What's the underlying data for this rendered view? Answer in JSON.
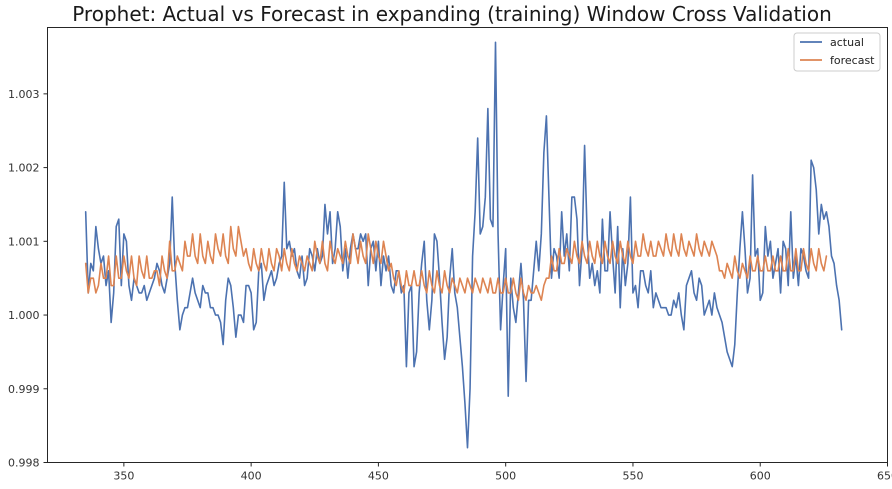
{
  "chart_data": {
    "type": "line",
    "title": "Prophet: Actual vs Forecast in expanding (training) Window Cross Validation",
    "xlabel": "",
    "ylabel": "",
    "xlim": [
      320,
      650
    ],
    "ylim": [
      0.998,
      1.0039
    ],
    "x_ticks": [
      350,
      400,
      450,
      500,
      550,
      600,
      650
    ],
    "y_ticks": [
      0.998,
      0.999,
      1.0,
      1.001,
      1.002,
      1.003
    ],
    "x_tick_labels": [
      "350",
      "400",
      "450",
      "500",
      "550",
      "600",
      "650"
    ],
    "y_tick_labels": [
      "0.998",
      "0.999",
      "1.000",
      "1.001",
      "1.002",
      "1.003"
    ],
    "grid": false,
    "legend_position": "top-right",
    "x_start": 335,
    "series": [
      {
        "name": "actual",
        "color": "#4c72b0",
        "values": [
          1.0014,
          1.0003,
          1.0007,
          1.0006,
          1.0012,
          1.0009,
          1.0007,
          1.0008,
          1.0004,
          1.0006,
          0.9999,
          1.0003,
          1.0012,
          1.0013,
          1.0004,
          1.0011,
          1.001,
          1.0004,
          1.0002,
          1.0005,
          1.0004,
          1.0003,
          1.0003,
          1.0004,
          1.0002,
          1.0003,
          1.0004,
          1.0005,
          1.0007,
          1.0006,
          1.0004,
          1.0003,
          1.0005,
          1.0007,
          1.0016,
          1.0007,
          1.0002,
          0.9998,
          1.0,
          1.0001,
          1.0001,
          1.0003,
          1.0005,
          1.0003,
          1.0002,
          1.0001,
          1.0004,
          1.0003,
          1.0003,
          1.0001,
          1.0001,
          1.0,
          1.0,
          0.9999,
          0.9996,
          1.0002,
          1.0005,
          1.0004,
          1.0001,
          0.9997,
          1.0,
          1.0,
          0.9999,
          1.0004,
          1.0004,
          1.0003,
          0.9998,
          0.9999,
          1.0006,
          1.0007,
          1.0002,
          1.0004,
          1.0005,
          1.0006,
          1.0004,
          1.0005,
          1.0007,
          1.0008,
          1.0018,
          1.0009,
          1.001,
          1.0008,
          1.0009,
          1.0006,
          1.0005,
          1.0008,
          1.0004,
          1.0005,
          1.0009,
          1.0008,
          1.0006,
          1.0009,
          1.0007,
          1.0008,
          1.0015,
          1.0011,
          1.0014,
          1.0007,
          1.0009,
          1.0014,
          1.0012,
          1.0006,
          1.0009,
          1.0005,
          1.0009,
          1.0011,
          1.0009,
          1.0009,
          1.0011,
          1.001,
          1.0011,
          1.0004,
          1.0009,
          1.001,
          1.0006,
          1.001,
          1.0004,
          1.0008,
          1.0006,
          1.0008,
          1.0004,
          1.0003,
          1.0006,
          1.0006,
          1.0003,
          1.0004,
          0.9993,
          1.0003,
          1.0004,
          0.9993,
          0.9995,
          1.0003,
          1.0007,
          1.001,
          1.0002,
          0.9998,
          1.0002,
          1.0011,
          1.001,
          1.0005,
          0.9999,
          0.9994,
          0.9997,
          1.0005,
          1.0009,
          1.0003,
          1.0001,
          0.9997,
          0.9993,
          0.9988,
          0.9982,
          0.999,
          1.0008,
          1.0014,
          1.0024,
          1.0011,
          1.0012,
          1.0016,
          1.0028,
          1.0013,
          1.0012,
          1.0037,
          1.0011,
          0.9998,
          1.0004,
          1.0009,
          0.9989,
          1.0005,
          1.0001,
          0.9999,
          1.0003,
          1.0007,
          1.0002,
          0.9991,
          1.0002,
          1.0002,
          1.0006,
          1.001,
          1.0006,
          1.0011,
          1.0022,
          1.0027,
          1.0016,
          1.0005,
          1.0009,
          1.0008,
          1.0005,
          1.0014,
          1.0008,
          1.0011,
          1.0006,
          1.0016,
          1.0016,
          1.0013,
          1.0004,
          1.0009,
          1.0023,
          1.0011,
          1.0005,
          1.0007,
          1.0004,
          1.0006,
          1.0003,
          1.0013,
          1.0006,
          1.0006,
          1.0014,
          1.0008,
          1.0003,
          1.0012,
          1.0001,
          1.0009,
          1.0004,
          1.0007,
          1.0016,
          1.0003,
          1.0004,
          1.0001,
          1.0006,
          1.0006,
          1.0004,
          1.0003,
          1.0006,
          1.0001,
          1.0003,
          1.0002,
          1.0001,
          1.0001,
          1.0001,
          1.0,
          1.0,
          1.0002,
          1.0001,
          1.0003,
          1.0,
          0.9998,
          1.0004,
          1.0005,
          1.0006,
          1.0003,
          1.0002,
          1.0005,
          1.0004,
          1.0,
          1.0001,
          1.0002,
          1.0,
          1.0003,
          1.0001,
          1.0,
          0.9999,
          0.9997,
          0.9995,
          0.9994,
          0.9993,
          0.9996,
          1.0003,
          1.0009,
          1.0014,
          1.0009,
          1.0003,
          1.0005,
          1.0019,
          1.0008,
          1.0009,
          1.0002,
          1.0003,
          1.0012,
          1.0008,
          1.001,
          1.0005,
          1.0007,
          1.0009,
          1.0003,
          1.001,
          1.0009,
          1.0004,
          1.0014,
          1.0005,
          1.0008,
          1.0004,
          1.0009,
          1.0008,
          1.0006,
          1.0005,
          1.0021,
          1.002,
          1.0017,
          1.0011,
          1.0015,
          1.0013,
          1.0014,
          1.0012,
          1.0008,
          1.0007,
          1.0004,
          1.0002,
          0.9998
        ]
      },
      {
        "name": "forecast",
        "color": "#dd8452",
        "values": [
          1.0007,
          1.0003,
          1.0005,
          1.0005,
          1.0003,
          1.0004,
          1.0007,
          1.0005,
          1.0005,
          1.0008,
          1.0004,
          1.0004,
          1.0008,
          1.0005,
          1.0005,
          1.0008,
          1.0006,
          1.0005,
          1.0008,
          1.0005,
          1.0004,
          1.0008,
          1.0006,
          1.0005,
          1.0008,
          1.0005,
          1.0005,
          1.0006,
          1.0006,
          1.0004,
          1.0008,
          1.0006,
          1.0005,
          1.001,
          1.0006,
          1.0006,
          1.0008,
          1.0007,
          1.0006,
          1.001,
          1.0008,
          1.0008,
          1.0011,
          1.0008,
          1.0007,
          1.0011,
          1.0008,
          1.0007,
          1.001,
          1.0008,
          1.0007,
          1.0011,
          1.0009,
          1.0008,
          1.0011,
          1.0008,
          1.0007,
          1.0012,
          1.0009,
          1.0008,
          1.0012,
          1.001,
          1.0008,
          1.0009,
          1.0007,
          1.0006,
          1.0009,
          1.0007,
          1.0006,
          1.0009,
          1.0007,
          1.0006,
          1.0009,
          1.0007,
          1.0006,
          1.0009,
          1.0008,
          1.0006,
          1.0009,
          1.0007,
          1.0006,
          1.0009,
          1.0007,
          1.0006,
          1.0008,
          1.0007,
          1.0006,
          1.0008,
          1.0007,
          1.0006,
          1.001,
          1.0008,
          1.0007,
          1.001,
          1.0007,
          1.0006,
          1.001,
          1.0008,
          1.0007,
          1.0009,
          1.0008,
          1.0007,
          1.001,
          1.0008,
          1.0007,
          1.0011,
          1.0009,
          1.0007,
          1.001,
          1.0008,
          1.0007,
          1.0011,
          1.0009,
          1.0007,
          1.001,
          1.0008,
          1.0007,
          1.001,
          1.0008,
          1.0006,
          1.0007,
          1.0005,
          1.0004,
          1.0006,
          1.0004,
          1.0003,
          1.0006,
          1.0004,
          1.0004,
          1.0006,
          1.0004,
          1.0004,
          1.0006,
          1.0004,
          1.0003,
          1.0006,
          1.0004,
          1.0003,
          1.0006,
          1.0004,
          1.0003,
          1.0006,
          1.0004,
          1.0003,
          1.0005,
          1.0004,
          1.0003,
          1.0005,
          1.0004,
          1.0003,
          1.0005,
          1.0004,
          1.0003,
          1.0005,
          1.0004,
          1.0003,
          1.0005,
          1.0004,
          1.0003,
          1.0005,
          1.0003,
          1.0003,
          1.0005,
          1.0003,
          1.0003,
          1.0005,
          1.0003,
          1.0003,
          1.0005,
          1.0003,
          1.0002,
          1.0005,
          1.0003,
          1.0002,
          1.0004,
          1.0003,
          1.0003,
          1.0004,
          1.0003,
          1.0002,
          1.0004,
          1.0005,
          1.0005,
          1.0008,
          1.0006,
          1.0006,
          1.0009,
          1.0007,
          1.0007,
          1.0009,
          1.0008,
          1.0007,
          1.001,
          1.0008,
          1.0007,
          1.001,
          1.0008,
          1.0007,
          1.001,
          1.0008,
          1.0007,
          1.001,
          1.0008,
          1.0007,
          1.001,
          1.0008,
          1.0007,
          1.001,
          1.0008,
          1.0007,
          1.001,
          1.0008,
          1.0007,
          1.001,
          1.0008,
          1.0007,
          1.001,
          1.0008,
          1.0008,
          1.0011,
          1.0009,
          1.0008,
          1.001,
          1.0008,
          1.0008,
          1.001,
          1.0009,
          1.0008,
          1.0011,
          1.0009,
          1.0008,
          1.0011,
          1.0009,
          1.0008,
          1.0011,
          1.0009,
          1.0008,
          1.001,
          1.0009,
          1.0008,
          1.0011,
          1.0009,
          1.0008,
          1.001,
          1.0009,
          1.0008,
          1.001,
          1.0009,
          1.0008,
          1.0006,
          1.0006,
          1.0005,
          1.0007,
          1.0006,
          1.0005,
          1.0008,
          1.0006,
          1.0005,
          1.0007,
          1.0006,
          1.0005,
          1.0008,
          1.0006,
          1.0006,
          1.0008,
          1.0006,
          1.0006,
          1.0008,
          1.0006,
          1.0006,
          1.0008,
          1.0006,
          1.0006,
          1.0008,
          1.0006,
          1.0006,
          1.0009,
          1.0006,
          1.0006,
          1.0009,
          1.0006,
          1.0006,
          1.0009,
          1.0007,
          1.0006,
          1.0009,
          1.0007,
          1.0006,
          1.0009,
          1.0007,
          1.0006,
          1.0008
        ]
      }
    ]
  }
}
